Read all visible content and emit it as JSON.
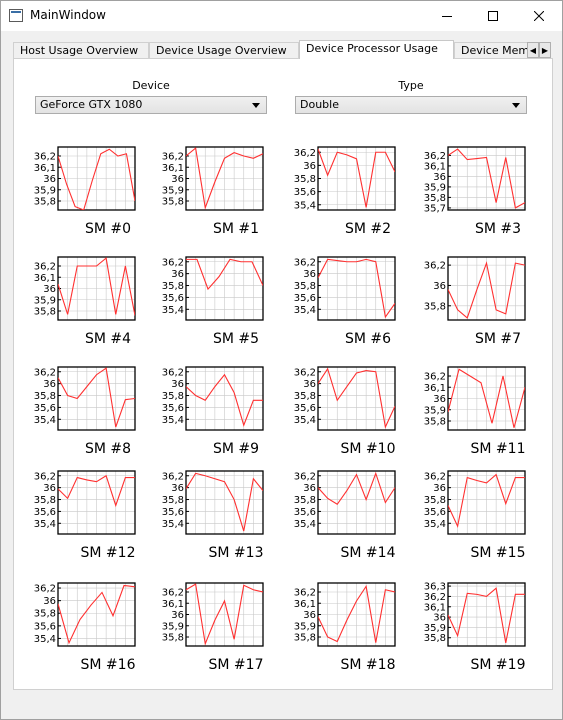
{
  "window": {
    "title": "MainWindow"
  },
  "tabs": [
    {
      "label": "Host Usage Overview",
      "active": false
    },
    {
      "label": "Device Usage Overview",
      "active": false
    },
    {
      "label": "Device Processor Usage",
      "active": true
    },
    {
      "label": "Device Memory Usage",
      "active": false
    }
  ],
  "controls": {
    "device_label": "Device",
    "device_value": "GeForce GTX 1080",
    "type_label": "Type",
    "type_value": "Double"
  },
  "colors": {
    "series": "#ff3030",
    "grid": "#c8c8c8",
    "frame": "#000000"
  },
  "chart_data": [
    {
      "type": "line",
      "title": "SM #0",
      "yticks": [
        "36,2",
        "36,1",
        "36",
        "35,9",
        "35,8"
      ],
      "ylim": [
        35.72,
        36.28
      ],
      "values": [
        36.2,
        35.95,
        35.75,
        35.72,
        35.98,
        36.22,
        36.26,
        36.2,
        36.22,
        35.8
      ]
    },
    {
      "type": "line",
      "title": "SM #1",
      "yticks": [
        "36,2",
        "36,1",
        "36",
        "35,9",
        "35,8"
      ],
      "ylim": [
        35.72,
        36.28
      ],
      "values": [
        36.2,
        36.27,
        35.74,
        35.97,
        36.18,
        36.23,
        36.2,
        36.18,
        36.22
      ]
    },
    {
      "type": "line",
      "title": "SM #2",
      "yticks": [
        "36,2",
        "36",
        "35,8",
        "35,6",
        "35,4"
      ],
      "ylim": [
        35.32,
        36.28
      ],
      "values": [
        36.25,
        35.85,
        36.2,
        36.16,
        36.1,
        35.36,
        36.2,
        36.2,
        35.9
      ]
    },
    {
      "type": "line",
      "title": "SM #3",
      "yticks": [
        "36,2",
        "36,1",
        "36",
        "35,9",
        "35,8",
        "35,7"
      ],
      "ylim": [
        35.68,
        36.28
      ],
      "values": [
        36.2,
        36.26,
        36.16,
        36.17,
        36.18,
        35.75,
        36.18,
        35.7,
        35.75
      ]
    },
    {
      "type": "line",
      "title": "SM #4",
      "yticks": [
        "36,2",
        "36,1",
        "36",
        "35,9",
        "35,8"
      ],
      "ylim": [
        35.72,
        36.28
      ],
      "values": [
        36.04,
        35.77,
        36.2,
        36.2,
        36.2,
        36.27,
        35.77,
        36.2,
        35.76
      ]
    },
    {
      "type": "line",
      "title": "SM #5",
      "yticks": [
        "36,2",
        "36",
        "35,8",
        "35,6",
        "35,4"
      ],
      "ylim": [
        35.22,
        36.28
      ],
      "values": [
        36.24,
        36.24,
        35.74,
        35.95,
        36.24,
        36.2,
        36.2,
        35.8
      ]
    },
    {
      "type": "line",
      "title": "SM #6",
      "yticks": [
        "36,2",
        "36",
        "35,8",
        "35,6",
        "35,4"
      ],
      "ylim": [
        35.22,
        36.28
      ],
      "values": [
        35.93,
        36.24,
        36.22,
        36.2,
        36.2,
        36.24,
        36.2,
        35.27,
        35.5
      ]
    },
    {
      "type": "line",
      "title": "SM #7",
      "yticks": [
        "36,2",
        "36",
        "35,8"
      ],
      "ylim": [
        35.66,
        36.28
      ],
      "values": [
        35.96,
        35.76,
        35.68,
        35.96,
        36.22,
        35.76,
        35.72,
        36.22,
        36.2
      ]
    },
    {
      "type": "line",
      "title": "SM #8",
      "yticks": [
        "36,2",
        "36",
        "35,8",
        "35,6",
        "35,4"
      ],
      "ylim": [
        35.22,
        36.28
      ],
      "values": [
        36.1,
        35.8,
        35.75,
        35.95,
        36.15,
        36.26,
        35.27,
        35.73,
        35.75
      ]
    },
    {
      "type": "line",
      "title": "SM #9",
      "yticks": [
        "36,2",
        "36",
        "35,8",
        "35,6",
        "35,4"
      ],
      "ylim": [
        35.22,
        36.28
      ],
      "values": [
        35.95,
        35.8,
        35.72,
        35.95,
        36.15,
        35.85,
        35.3,
        35.72,
        35.72
      ]
    },
    {
      "type": "line",
      "title": "SM #10",
      "yticks": [
        "36,2",
        "36",
        "35,8",
        "35,6",
        "35,4"
      ],
      "ylim": [
        35.22,
        36.28
      ],
      "values": [
        36.0,
        36.25,
        35.72,
        35.95,
        36.18,
        36.22,
        36.2,
        35.27,
        35.62
      ]
    },
    {
      "type": "line",
      "title": "SM #11",
      "yticks": [
        "36,2",
        "36,1",
        "36",
        "35,9",
        "35,8"
      ],
      "ylim": [
        35.72,
        36.28
      ],
      "values": [
        35.88,
        36.26,
        36.2,
        36.14,
        35.78,
        36.2,
        35.74,
        36.1
      ]
    },
    {
      "type": "line",
      "title": "SM #12",
      "yticks": [
        "36,2",
        "36",
        "35,8",
        "35,6",
        "35,4"
      ],
      "ylim": [
        35.22,
        36.28
      ],
      "values": [
        35.98,
        35.82,
        36.17,
        36.13,
        36.1,
        36.2,
        35.7,
        36.17,
        36.17
      ]
    },
    {
      "type": "line",
      "title": "SM #13",
      "yticks": [
        "36,2",
        "36",
        "35,8",
        "35,6",
        "35,4"
      ],
      "ylim": [
        35.22,
        36.28
      ],
      "values": [
        35.98,
        36.24,
        36.2,
        36.15,
        36.1,
        35.8,
        35.27,
        36.15,
        35.95
      ]
    },
    {
      "type": "line",
      "title": "SM #14",
      "yticks": [
        "36,2",
        "36",
        "35,8",
        "35,6",
        "35,4"
      ],
      "ylim": [
        35.22,
        36.28
      ],
      "values": [
        36.0,
        35.82,
        35.72,
        35.95,
        36.22,
        35.8,
        36.24,
        35.75,
        36.0
      ]
    },
    {
      "type": "line",
      "title": "SM #15",
      "yticks": [
        "36,2",
        "36",
        "35,8",
        "35,6",
        "35,4"
      ],
      "ylim": [
        35.22,
        36.28
      ],
      "values": [
        35.7,
        35.35,
        36.17,
        36.12,
        36.08,
        36.22,
        35.73,
        36.17,
        36.17
      ]
    },
    {
      "type": "line",
      "title": "SM #16",
      "yticks": [
        "36,2",
        "36",
        "35,8",
        "35,6",
        "35,4"
      ],
      "ylim": [
        35.28,
        36.28
      ],
      "values": [
        35.95,
        35.33,
        35.7,
        35.93,
        36.13,
        35.76,
        36.24,
        36.22
      ]
    },
    {
      "type": "line",
      "title": "SM #17",
      "yticks": [
        "36,2",
        "36,1",
        "36",
        "35,9",
        "35,8"
      ],
      "ylim": [
        35.72,
        36.28
      ],
      "values": [
        36.22,
        36.27,
        35.74,
        35.95,
        36.12,
        35.78,
        36.26,
        36.22,
        36.2
      ]
    },
    {
      "type": "line",
      "title": "SM #18",
      "yticks": [
        "36,2",
        "36,1",
        "36",
        "35,9",
        "35,8"
      ],
      "ylim": [
        35.72,
        36.28
      ],
      "values": [
        35.98,
        35.8,
        35.76,
        35.95,
        36.12,
        36.25,
        35.75,
        36.22,
        36.2
      ]
    },
    {
      "type": "line",
      "title": "SM #19",
      "yticks": [
        "36,3",
        "36,2",
        "36,1",
        "36",
        "35,9",
        "35,8"
      ],
      "ylim": [
        35.72,
        36.33
      ],
      "values": [
        36.02,
        35.82,
        36.23,
        36.22,
        36.2,
        36.28,
        35.75,
        36.22,
        36.22
      ]
    }
  ]
}
